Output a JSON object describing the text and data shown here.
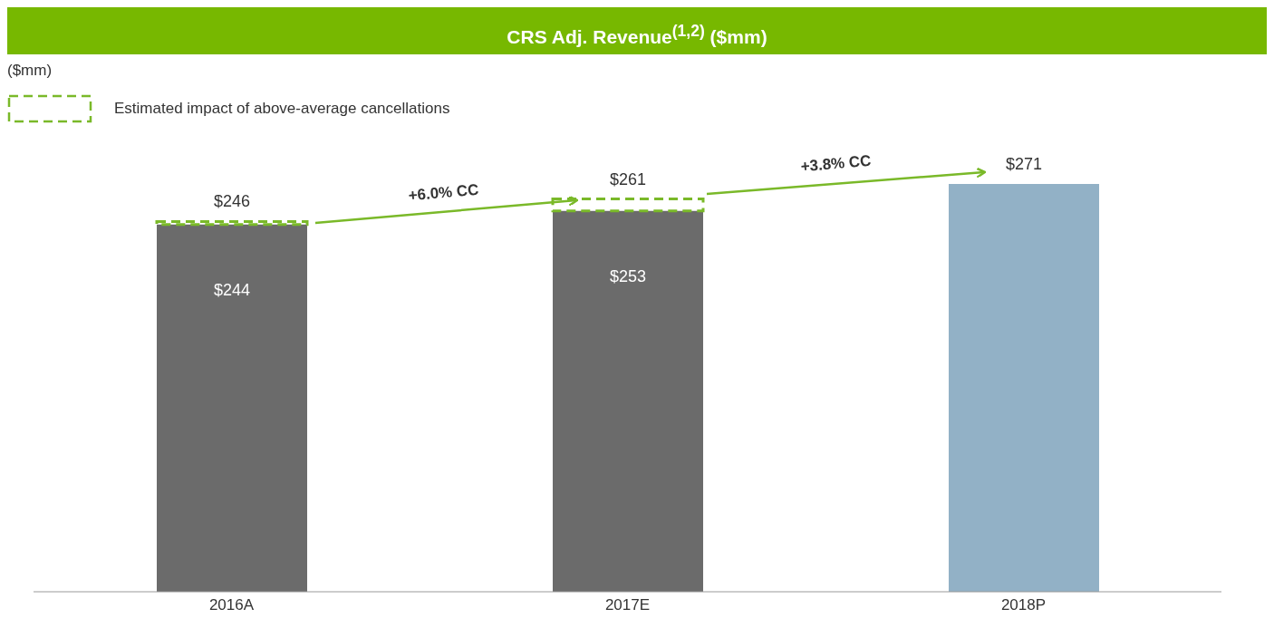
{
  "chart_data": {
    "type": "bar",
    "title": "CRS Adj. Revenue$^{(1,2)}$ ($mm)",
    "categories": [
      "2016A",
      "2017E",
      "2018P"
    ],
    "stacked": true,
    "series": [
      {
        "values": [
          244,
          253,
          271
        ],
        "colors": [
          "#6b6b6b",
          "#6b6b6b",
          "#92b1c6"
        ],
        "value_labels": [
          "$244",
          "$253",
          null
        ]
      },
      {
        "name": "Estimated impact of above-average cancellations",
        "color": "#7ab929",
        "values": [
          2,
          8,
          null
        ],
        "line_style": "dashed"
      }
    ],
    "totals": [
      "$246",
      "$261",
      "$271"
    ],
    "tick_labels": "x",
    "legend": "top left",
    "annotations": [
      "($mm)",
      "+6.0% CC",
      "+3.8% CC"
    ]
  }
}
